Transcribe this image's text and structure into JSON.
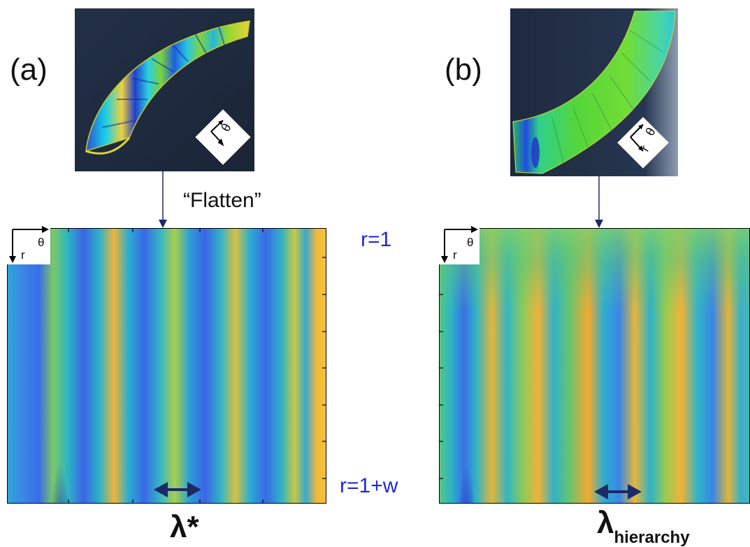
{
  "panel_a": {
    "label": "(a)",
    "flatten_label": "“Flatten”",
    "axis_theta": "θ",
    "axis_r": "r",
    "render_axis_theta": "θ",
    "render_axis_r": "r",
    "lambda_label": "λ*"
  },
  "panel_b": {
    "label": "(b)",
    "axis_theta": "θ",
    "axis_r": "r",
    "render_axis_theta": "θ",
    "render_axis_r": "r",
    "lambda_main": "λ",
    "lambda_sub": "hierarchy"
  },
  "center_labels": {
    "r_top": "r=1",
    "r_bottom": "r=1+w"
  },
  "colors": {
    "dark_blue": "#1b2fb8",
    "blue": "#3d7ee8",
    "cyan": "#23b6c8",
    "green": "#6cc86a",
    "yellow": "#f3c63a",
    "orange": "#f6a92e",
    "label_blue": "#1f2bd6",
    "arrow_navy": "#1c2a66",
    "render_bg": "#1b2738"
  }
}
